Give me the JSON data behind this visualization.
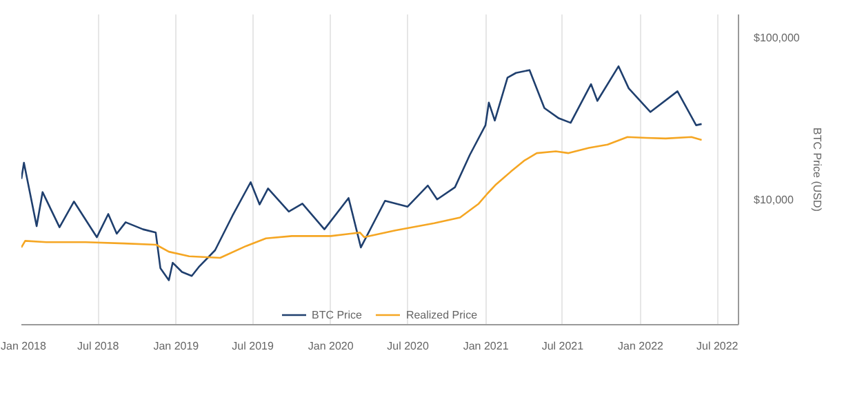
{
  "chart_data": {
    "type": "line",
    "ylabel": "BTC Price (USD)",
    "log": "y",
    "grid": "x",
    "legend": "bottom",
    "line_style": "solid",
    "xlim": [
      "2018-01-01",
      "2022-08-20"
    ],
    "ylim": [
      1700,
      140000
    ],
    "yticks": [
      {
        "value": 10000,
        "label": "$10,000"
      },
      {
        "value": 100000,
        "label": "$100,000"
      }
    ],
    "xticks": [
      {
        "value": "2018-01-01",
        "label": "Jan 2018"
      },
      {
        "value": "2018-07-01",
        "label": "Jul 2018"
      },
      {
        "value": "2019-01-01",
        "label": "Jan 2019"
      },
      {
        "value": "2019-07-01",
        "label": "Jul 2019"
      },
      {
        "value": "2020-01-01",
        "label": "Jan 2020"
      },
      {
        "value": "2020-07-01",
        "label": "Jul 2020"
      },
      {
        "value": "2021-01-01",
        "label": "Jan 2021"
      },
      {
        "value": "2021-07-01",
        "label": "Jul 2021"
      },
      {
        "value": "2022-01-01",
        "label": "Jan 2022"
      },
      {
        "value": "2022-07-01",
        "label": "Jul 2022"
      }
    ],
    "series": [
      {
        "name": "BTC Price",
        "color": "#1f3f6e",
        "x": [
          "2018-01-01",
          "2018-01-07",
          "2018-02-06",
          "2018-02-20",
          "2018-04-01",
          "2018-05-05",
          "2018-06-28",
          "2018-07-25",
          "2018-08-14",
          "2018-09-04",
          "2018-10-15",
          "2018-11-14",
          "2018-11-25",
          "2018-12-15",
          "2018-12-24",
          "2019-01-15",
          "2019-02-07",
          "2019-02-25",
          "2019-04-03",
          "2019-05-14",
          "2019-06-26",
          "2019-07-17",
          "2019-08-06",
          "2019-09-24",
          "2019-10-26",
          "2019-12-17",
          "2020-02-12",
          "2020-03-12",
          "2020-05-08",
          "2020-06-30",
          "2020-08-17",
          "2020-09-08",
          "2020-10-20",
          "2020-11-24",
          "2020-12-31",
          "2021-01-08",
          "2021-01-22",
          "2021-02-21",
          "2021-03-13",
          "2021-04-14",
          "2021-05-19",
          "2021-06-22",
          "2021-07-20",
          "2021-09-06",
          "2021-09-21",
          "2021-11-10",
          "2021-12-04",
          "2022-01-24",
          "2022-03-29",
          "2022-05-12",
          "2022-05-25"
        ],
        "values": [
          13500,
          17000,
          6900,
          11200,
          6800,
          9800,
          5900,
          8200,
          6200,
          7300,
          6600,
          6300,
          3800,
          3200,
          4100,
          3600,
          3400,
          3900,
          4900,
          8000,
          12900,
          9400,
          11800,
          8500,
          9500,
          6600,
          10300,
          5100,
          9900,
          9100,
          12300,
          10100,
          12000,
          19000,
          29000,
          40000,
          31000,
          57000,
          61000,
          63500,
          37000,
          32000,
          30000,
          52000,
          41000,
          67000,
          49000,
          35000,
          47000,
          29000,
          29500
        ]
      },
      {
        "name": "Realized Price",
        "color": "#f5a623",
        "x": [
          "2018-01-01",
          "2018-01-10",
          "2018-03-01",
          "2018-06-01",
          "2018-09-01",
          "2018-11-15",
          "2018-12-15",
          "2019-02-01",
          "2019-04-15",
          "2019-06-15",
          "2019-08-01",
          "2019-10-01",
          "2020-01-01",
          "2020-03-10",
          "2020-03-20",
          "2020-06-01",
          "2020-09-01",
          "2020-11-01",
          "2020-12-15",
          "2021-01-05",
          "2021-01-25",
          "2021-03-01",
          "2021-04-01",
          "2021-05-01",
          "2021-06-15",
          "2021-07-15",
          "2021-09-01",
          "2021-10-15",
          "2021-12-01",
          "2022-01-15",
          "2022-03-01",
          "2022-05-01",
          "2022-05-25"
        ],
        "values": [
          5100,
          5600,
          5500,
          5500,
          5400,
          5300,
          4800,
          4500,
          4400,
          5200,
          5800,
          6000,
          6000,
          6300,
          5900,
          6500,
          7200,
          7800,
          9500,
          11000,
          12500,
          15000,
          17500,
          19500,
          20000,
          19500,
          21000,
          22000,
          24500,
          24200,
          24000,
          24500,
          23500
        ]
      }
    ]
  }
}
